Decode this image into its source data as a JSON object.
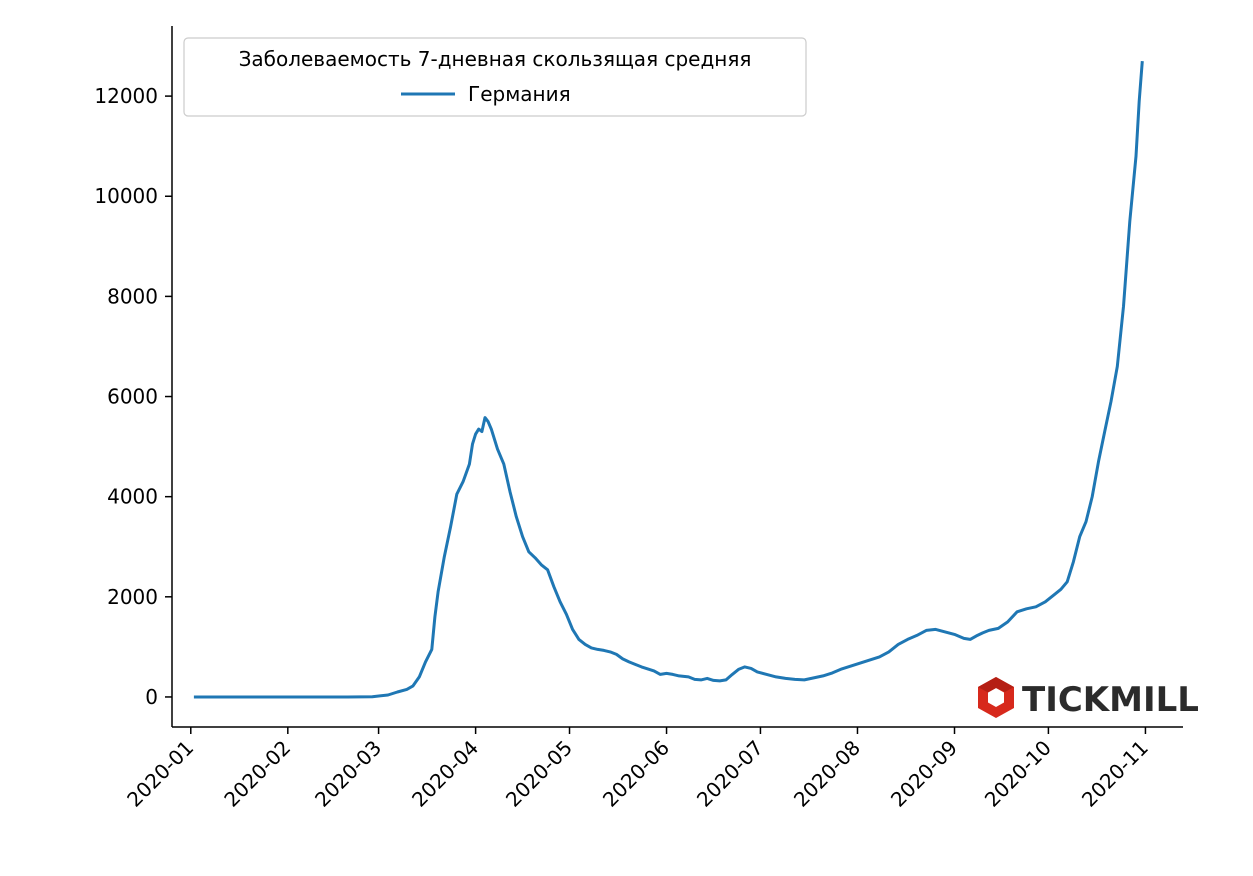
{
  "chart_data": {
    "type": "line",
    "title": "",
    "xlabel": "",
    "ylabel": "",
    "x_ticks": [
      "2020-01",
      "2020-02",
      "2020-03",
      "2020-04",
      "2020-05",
      "2020-06",
      "2020-07",
      "2020-08",
      "2020-09",
      "2020-10",
      "2020-11"
    ],
    "y_ticks": [
      0,
      2000,
      4000,
      6000,
      8000,
      10000,
      12000
    ],
    "xlim": [
      "2019-12-26",
      "2020-11-13"
    ],
    "ylim": [
      -600,
      13400
    ],
    "grid": false,
    "legend": {
      "title": "Заболеваемость 7-дневная скользящая средняя",
      "position": "top-left"
    },
    "series": [
      {
        "name": "Германия",
        "color": "#1f77b4",
        "points": [
          [
            "2020-01-02",
            0
          ],
          [
            "2020-02-01",
            0
          ],
          [
            "2020-02-20",
            0
          ],
          [
            "2020-02-28",
            5
          ],
          [
            "2020-03-04",
            40
          ],
          [
            "2020-03-07",
            100
          ],
          [
            "2020-03-10",
            150
          ],
          [
            "2020-03-12",
            220
          ],
          [
            "2020-03-14",
            400
          ],
          [
            "2020-03-16",
            700
          ],
          [
            "2020-03-18",
            950
          ],
          [
            "2020-03-19",
            1600
          ],
          [
            "2020-03-20",
            2100
          ],
          [
            "2020-03-22",
            2800
          ],
          [
            "2020-03-24",
            3400
          ],
          [
            "2020-03-26",
            4050
          ],
          [
            "2020-03-28",
            4300
          ],
          [
            "2020-03-30",
            4650
          ],
          [
            "2020-03-31",
            5050
          ],
          [
            "2020-04-01",
            5250
          ],
          [
            "2020-04-02",
            5350
          ],
          [
            "2020-04-03",
            5300
          ],
          [
            "2020-04-04",
            5580
          ],
          [
            "2020-04-05",
            5500
          ],
          [
            "2020-04-06",
            5350
          ],
          [
            "2020-04-08",
            4950
          ],
          [
            "2020-04-10",
            4650
          ],
          [
            "2020-04-12",
            4100
          ],
          [
            "2020-04-14",
            3600
          ],
          [
            "2020-04-16",
            3200
          ],
          [
            "2020-04-18",
            2900
          ],
          [
            "2020-04-20",
            2780
          ],
          [
            "2020-04-22",
            2640
          ],
          [
            "2020-04-24",
            2540
          ],
          [
            "2020-04-26",
            2200
          ],
          [
            "2020-04-28",
            1900
          ],
          [
            "2020-04-30",
            1650
          ],
          [
            "2020-05-02",
            1350
          ],
          [
            "2020-05-04",
            1150
          ],
          [
            "2020-05-06",
            1050
          ],
          [
            "2020-05-08",
            980
          ],
          [
            "2020-05-10",
            950
          ],
          [
            "2020-05-12",
            930
          ],
          [
            "2020-05-14",
            900
          ],
          [
            "2020-05-16",
            850
          ],
          [
            "2020-05-18",
            760
          ],
          [
            "2020-05-20",
            700
          ],
          [
            "2020-05-22",
            650
          ],
          [
            "2020-05-24",
            600
          ],
          [
            "2020-05-26",
            560
          ],
          [
            "2020-05-28",
            520
          ],
          [
            "2020-05-30",
            450
          ],
          [
            "2020-06-01",
            470
          ],
          [
            "2020-06-03",
            450
          ],
          [
            "2020-06-05",
            420
          ],
          [
            "2020-06-08",
            400
          ],
          [
            "2020-06-10",
            350
          ],
          [
            "2020-06-12",
            340
          ],
          [
            "2020-06-14",
            370
          ],
          [
            "2020-06-16",
            330
          ],
          [
            "2020-06-18",
            320
          ],
          [
            "2020-06-20",
            340
          ],
          [
            "2020-06-22",
            450
          ],
          [
            "2020-06-24",
            550
          ],
          [
            "2020-06-26",
            600
          ],
          [
            "2020-06-28",
            570
          ],
          [
            "2020-06-30",
            500
          ],
          [
            "2020-07-03",
            450
          ],
          [
            "2020-07-06",
            400
          ],
          [
            "2020-07-09",
            370
          ],
          [
            "2020-07-12",
            350
          ],
          [
            "2020-07-15",
            340
          ],
          [
            "2020-07-18",
            380
          ],
          [
            "2020-07-21",
            420
          ],
          [
            "2020-07-24",
            480
          ],
          [
            "2020-07-27",
            560
          ],
          [
            "2020-07-30",
            620
          ],
          [
            "2020-08-02",
            680
          ],
          [
            "2020-08-05",
            740
          ],
          [
            "2020-08-08",
            800
          ],
          [
            "2020-08-11",
            900
          ],
          [
            "2020-08-14",
            1050
          ],
          [
            "2020-08-17",
            1150
          ],
          [
            "2020-08-20",
            1230
          ],
          [
            "2020-08-23",
            1330
          ],
          [
            "2020-08-26",
            1350
          ],
          [
            "2020-08-29",
            1300
          ],
          [
            "2020-09-01",
            1250
          ],
          [
            "2020-09-04",
            1170
          ],
          [
            "2020-09-06",
            1150
          ],
          [
            "2020-09-08",
            1220
          ],
          [
            "2020-09-10",
            1280
          ],
          [
            "2020-09-12",
            1330
          ],
          [
            "2020-09-15",
            1370
          ],
          [
            "2020-09-18",
            1500
          ],
          [
            "2020-09-21",
            1700
          ],
          [
            "2020-09-24",
            1760
          ],
          [
            "2020-09-27",
            1800
          ],
          [
            "2020-09-30",
            1900
          ],
          [
            "2020-10-03",
            2050
          ],
          [
            "2020-10-05",
            2150
          ],
          [
            "2020-10-07",
            2300
          ],
          [
            "2020-10-09",
            2700
          ],
          [
            "2020-10-11",
            3200
          ],
          [
            "2020-10-13",
            3500
          ],
          [
            "2020-10-15",
            4000
          ],
          [
            "2020-10-17",
            4700
          ],
          [
            "2020-10-19",
            5300
          ],
          [
            "2020-10-21",
            5900
          ],
          [
            "2020-10-23",
            6600
          ],
          [
            "2020-10-25",
            7800
          ],
          [
            "2020-10-27",
            9500
          ],
          [
            "2020-10-29",
            10800
          ],
          [
            "2020-10-30",
            11900
          ],
          [
            "2020-10-31",
            12700
          ]
        ]
      }
    ]
  },
  "logo": {
    "text": "TICKMILL",
    "color": "#d7291c"
  }
}
